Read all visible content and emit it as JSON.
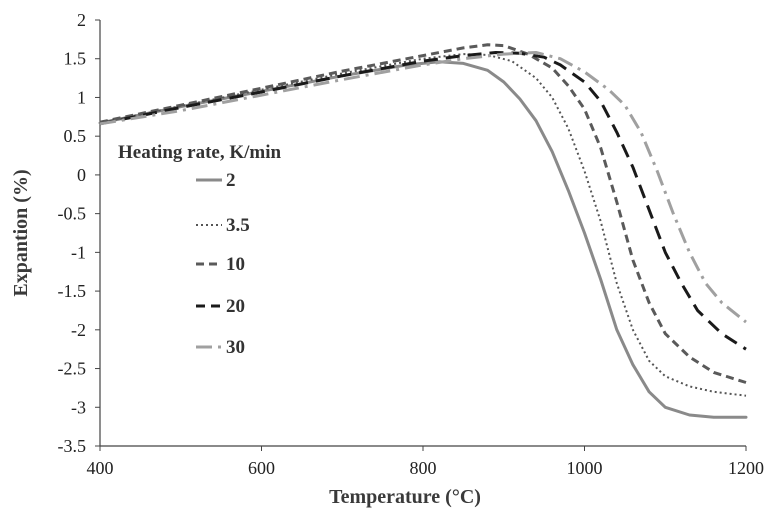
{
  "chart_data": {
    "type": "line",
    "xlabel": "Temperature (°C)",
    "ylabel": "Expantion (%)",
    "xlim": [
      400,
      1200
    ],
    "ylim": [
      -3.5,
      2
    ],
    "xticks": [
      400,
      600,
      800,
      1000,
      1200
    ],
    "yticks": [
      2,
      1.5,
      1,
      0.5,
      0,
      -0.5,
      -1,
      -1.5,
      -2,
      -2.5,
      -3,
      -3.5
    ],
    "ytick_labels": [
      "2",
      "1.5",
      "1",
      "0.5",
      "0",
      "-0.5",
      "-1",
      "-1.5",
      "-2",
      "-2.5",
      "-3",
      "-3.5"
    ],
    "legend_title": "Heating rate, K/min",
    "legend_position": "left",
    "grid": false,
    "series": [
      {
        "name": "2",
        "color": "#8a8a8a",
        "style": "solid",
        "points": [
          [
            400,
            0.67
          ],
          [
            500,
            0.88
          ],
          [
            600,
            1.08
          ],
          [
            700,
            1.28
          ],
          [
            780,
            1.42
          ],
          [
            820,
            1.46
          ],
          [
            850,
            1.44
          ],
          [
            880,
            1.35
          ],
          [
            900,
            1.2
          ],
          [
            920,
            0.98
          ],
          [
            940,
            0.7
          ],
          [
            960,
            0.3
          ],
          [
            980,
            -0.2
          ],
          [
            1000,
            -0.75
          ],
          [
            1020,
            -1.35
          ],
          [
            1040,
            -2.0
          ],
          [
            1060,
            -2.45
          ],
          [
            1080,
            -2.8
          ],
          [
            1100,
            -3.0
          ],
          [
            1130,
            -3.1
          ],
          [
            1160,
            -3.13
          ],
          [
            1200,
            -3.13
          ]
        ]
      },
      {
        "name": "3.5",
        "color": "#555555",
        "style": "dotted",
        "points": [
          [
            400,
            0.67
          ],
          [
            500,
            0.89
          ],
          [
            600,
            1.1
          ],
          [
            700,
            1.31
          ],
          [
            800,
            1.5
          ],
          [
            850,
            1.56
          ],
          [
            880,
            1.55
          ],
          [
            910,
            1.47
          ],
          [
            940,
            1.25
          ],
          [
            960,
            1.0
          ],
          [
            980,
            0.6
          ],
          [
            1000,
            0.05
          ],
          [
            1020,
            -0.6
          ],
          [
            1040,
            -1.4
          ],
          [
            1060,
            -2.0
          ],
          [
            1080,
            -2.4
          ],
          [
            1100,
            -2.6
          ],
          [
            1130,
            -2.73
          ],
          [
            1160,
            -2.8
          ],
          [
            1200,
            -2.85
          ]
        ]
      },
      {
        "name": "10",
        "color": "#5a5a5a",
        "style": "dashed",
        "points": [
          [
            400,
            0.68
          ],
          [
            500,
            0.9
          ],
          [
            600,
            1.12
          ],
          [
            700,
            1.34
          ],
          [
            800,
            1.54
          ],
          [
            850,
            1.64
          ],
          [
            880,
            1.68
          ],
          [
            900,
            1.67
          ],
          [
            930,
            1.56
          ],
          [
            960,
            1.38
          ],
          [
            980,
            1.15
          ],
          [
            1000,
            0.85
          ],
          [
            1020,
            0.35
          ],
          [
            1040,
            -0.35
          ],
          [
            1060,
            -1.1
          ],
          [
            1080,
            -1.65
          ],
          [
            1100,
            -2.05
          ],
          [
            1130,
            -2.35
          ],
          [
            1160,
            -2.55
          ],
          [
            1200,
            -2.68
          ]
        ]
      },
      {
        "name": "20",
        "color": "#1a1a1a",
        "style": "longdash",
        "points": [
          [
            400,
            0.66
          ],
          [
            500,
            0.87
          ],
          [
            600,
            1.07
          ],
          [
            700,
            1.28
          ],
          [
            800,
            1.47
          ],
          [
            850,
            1.54
          ],
          [
            890,
            1.58
          ],
          [
            920,
            1.57
          ],
          [
            950,
            1.52
          ],
          [
            970,
            1.42
          ],
          [
            1000,
            1.2
          ],
          [
            1020,
            0.95
          ],
          [
            1040,
            0.55
          ],
          [
            1060,
            0.1
          ],
          [
            1080,
            -0.45
          ],
          [
            1100,
            -1.0
          ],
          [
            1120,
            -1.4
          ],
          [
            1140,
            -1.75
          ],
          [
            1170,
            -2.05
          ],
          [
            1200,
            -2.25
          ]
        ]
      },
      {
        "name": "30",
        "color": "#a0a0a0",
        "style": "dashdot",
        "points": [
          [
            400,
            0.66
          ],
          [
            500,
            0.83
          ],
          [
            600,
            1.03
          ],
          [
            700,
            1.23
          ],
          [
            800,
            1.42
          ],
          [
            850,
            1.5
          ],
          [
            900,
            1.56
          ],
          [
            940,
            1.58
          ],
          [
            970,
            1.5
          ],
          [
            1000,
            1.33
          ],
          [
            1030,
            1.1
          ],
          [
            1050,
            0.9
          ],
          [
            1070,
            0.55
          ],
          [
            1090,
            0.05
          ],
          [
            1110,
            -0.5
          ],
          [
            1130,
            -1.0
          ],
          [
            1150,
            -1.4
          ],
          [
            1170,
            -1.65
          ],
          [
            1200,
            -1.9
          ]
        ]
      }
    ]
  }
}
